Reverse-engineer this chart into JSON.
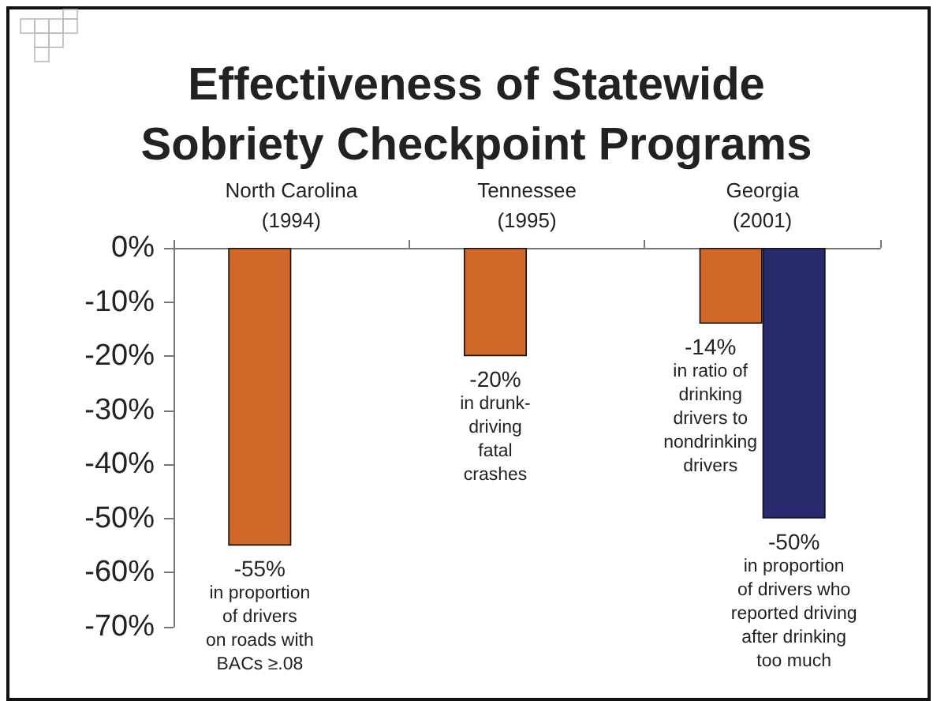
{
  "chart_data": {
    "type": "bar",
    "title": "Effectiveness of Statewide\nSobriety Checkpoint Programs",
    "categories": [
      "North Carolina\n(1994)",
      "Tennessee\n(1995)",
      "Georgia\n(2001)"
    ],
    "series": [
      {
        "color": "#cf6828",
        "values": [
          -55,
          -20,
          -14
        ],
        "value_labels": [
          "-55%\nin proportion\nof drivers\non roads with\nBACs ≥.08",
          "-20%\nin drunk-\ndriving\nfatal\ncrashes",
          "-14%\nin ratio of\ndrinking\ndrivers to\nnondrinking\ndrivers"
        ]
      },
      {
        "color": "#29296e",
        "values": [
          null,
          null,
          -50
        ],
        "value_labels": [
          null,
          null,
          "-50%\nin proportion\nof drivers who\nreported driving\nafter drinking\ntoo much"
        ]
      }
    ],
    "ylim": [
      -70,
      0
    ],
    "yticks": [
      {
        "value": 0,
        "label": "0%"
      },
      {
        "value": -10,
        "label": "-10%"
      },
      {
        "value": -20,
        "label": "-20%"
      },
      {
        "value": -30,
        "label": "-30%"
      },
      {
        "value": -40,
        "label": "-40%"
      },
      {
        "value": -50,
        "label": "-50%"
      },
      {
        "value": -60,
        "label": "-60%"
      },
      {
        "value": -70,
        "label": "-70%"
      }
    ],
    "grid": false
  }
}
